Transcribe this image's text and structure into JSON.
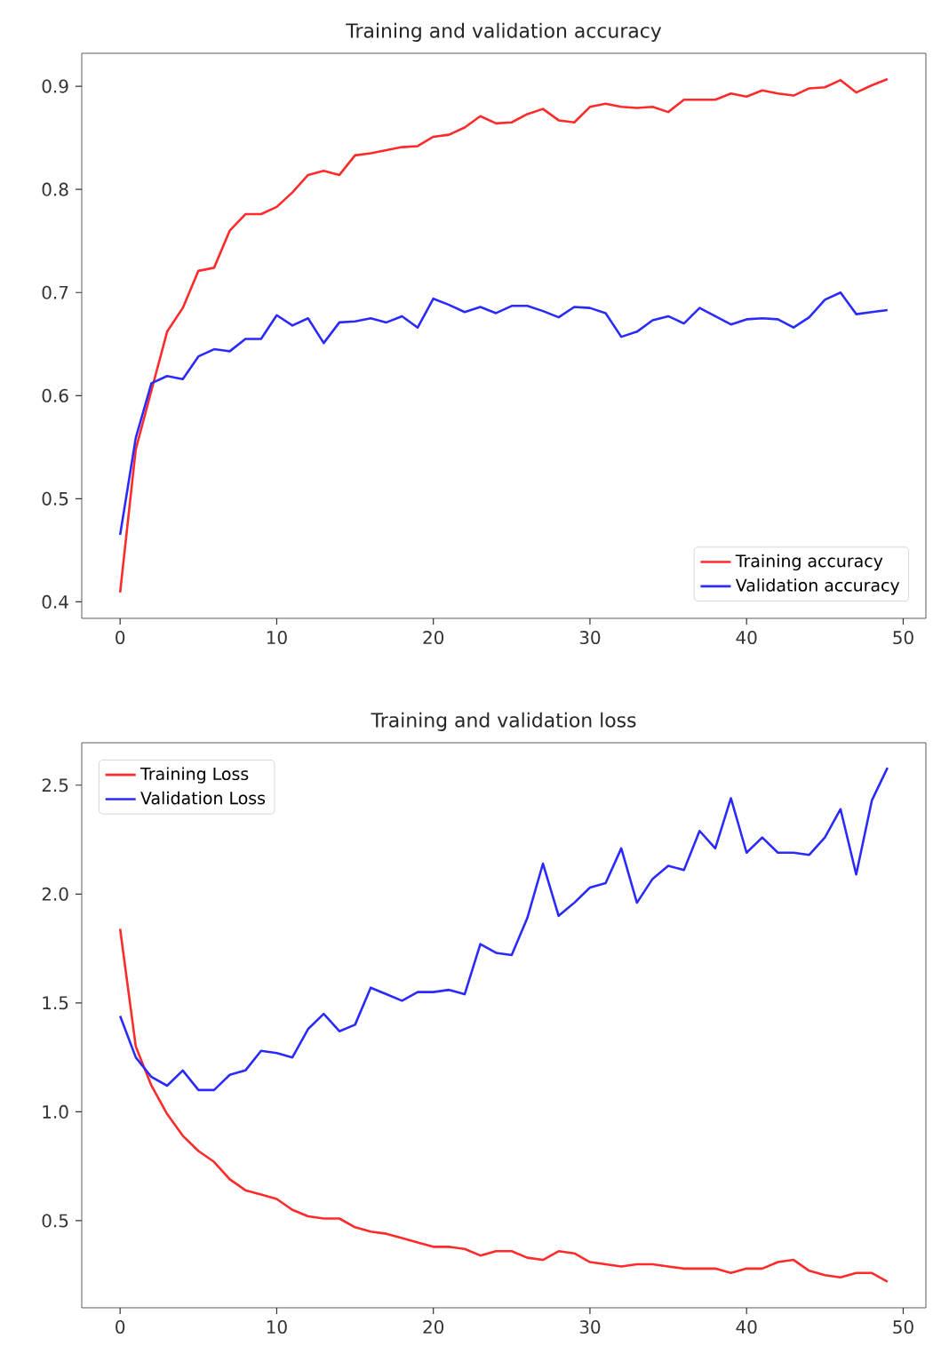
{
  "chart_data": [
    {
      "type": "line",
      "title": "Training and validation accuracy",
      "x": [
        0,
        1,
        2,
        3,
        4,
        5,
        6,
        7,
        8,
        9,
        10,
        11,
        12,
        13,
        14,
        15,
        16,
        17,
        18,
        19,
        20,
        21,
        22,
        23,
        24,
        25,
        26,
        27,
        28,
        29,
        30,
        31,
        32,
        33,
        34,
        35,
        36,
        37,
        38,
        39,
        40,
        41,
        42,
        43,
        44,
        45,
        46,
        47,
        48,
        49
      ],
      "series": [
        {
          "name": "Training accuracy",
          "color": "#ff2a2a",
          "values": [
            0.409,
            0.548,
            0.605,
            0.662,
            0.685,
            0.721,
            0.724,
            0.76,
            0.776,
            0.776,
            0.783,
            0.797,
            0.814,
            0.818,
            0.814,
            0.833,
            0.835,
            0.838,
            0.841,
            0.842,
            0.851,
            0.853,
            0.86,
            0.871,
            0.864,
            0.865,
            0.873,
            0.878,
            0.867,
            0.865,
            0.88,
            0.883,
            0.88,
            0.879,
            0.88,
            0.875,
            0.887,
            0.887,
            0.887,
            0.893,
            0.89,
            0.896,
            0.893,
            0.891,
            0.898,
            0.899,
            0.906,
            0.894,
            0.901,
            0.907
          ]
        },
        {
          "name": "Validation accuracy",
          "color": "#2a2aff",
          "values": [
            0.465,
            0.559,
            0.612,
            0.619,
            0.616,
            0.638,
            0.645,
            0.643,
            0.655,
            0.655,
            0.678,
            0.668,
            0.675,
            0.651,
            0.671,
            0.672,
            0.675,
            0.671,
            0.677,
            0.666,
            0.694,
            0.688,
            0.681,
            0.686,
            0.68,
            0.687,
            0.687,
            0.682,
            0.676,
            0.686,
            0.685,
            0.68,
            0.657,
            0.662,
            0.673,
            0.677,
            0.67,
            0.685,
            0.677,
            0.669,
            0.674,
            0.675,
            0.674,
            0.666,
            0.676,
            0.693,
            0.7,
            0.679,
            0.681,
            0.683
          ]
        }
      ],
      "xlim": [
        -2.45,
        51.45
      ],
      "xticks": [
        0,
        10,
        20,
        30,
        40,
        50
      ],
      "ylim": [
        0.384,
        0.932
      ],
      "yticks": [
        0.4,
        0.5,
        0.6,
        0.7,
        0.8,
        0.9
      ],
      "legend": "bottom right",
      "grid": false,
      "line_style": "solid"
    },
    {
      "type": "line",
      "title": "Training and validation loss",
      "x": [
        0,
        1,
        2,
        3,
        4,
        5,
        6,
        7,
        8,
        9,
        10,
        11,
        12,
        13,
        14,
        15,
        16,
        17,
        18,
        19,
        20,
        21,
        22,
        23,
        24,
        25,
        26,
        27,
        28,
        29,
        30,
        31,
        32,
        33,
        34,
        35,
        36,
        37,
        38,
        39,
        40,
        41,
        42,
        43,
        44,
        45,
        46,
        47,
        48,
        49
      ],
      "series": [
        {
          "name": "Training Loss",
          "color": "#ff2a2a",
          "values": [
            1.84,
            1.3,
            1.12,
            0.99,
            0.89,
            0.82,
            0.77,
            0.69,
            0.64,
            0.62,
            0.6,
            0.55,
            0.52,
            0.51,
            0.51,
            0.47,
            0.45,
            0.44,
            0.42,
            0.4,
            0.38,
            0.38,
            0.37,
            0.34,
            0.36,
            0.36,
            0.33,
            0.32,
            0.36,
            0.35,
            0.31,
            0.3,
            0.29,
            0.3,
            0.3,
            0.29,
            0.28,
            0.28,
            0.28,
            0.26,
            0.28,
            0.28,
            0.31,
            0.32,
            0.27,
            0.25,
            0.24,
            0.26,
            0.26,
            0.22
          ]
        },
        {
          "name": "Validation Loss",
          "color": "#2a2aff",
          "values": [
            1.44,
            1.25,
            1.16,
            1.12,
            1.19,
            1.1,
            1.1,
            1.17,
            1.19,
            1.28,
            1.27,
            1.25,
            1.38,
            1.45,
            1.37,
            1.4,
            1.57,
            1.54,
            1.51,
            1.55,
            1.55,
            1.56,
            1.54,
            1.77,
            1.73,
            1.72,
            1.89,
            2.14,
            1.9,
            1.96,
            2.03,
            2.05,
            2.21,
            1.96,
            2.07,
            2.13,
            2.11,
            2.29,
            2.21,
            2.44,
            2.19,
            2.26,
            2.19,
            2.19,
            2.18,
            2.26,
            2.39,
            2.09,
            2.43,
            2.58
          ]
        }
      ],
      "xlim": [
        -2.45,
        51.45
      ],
      "xticks": [
        0,
        10,
        20,
        30,
        40,
        50
      ],
      "ylim": [
        0.1,
        2.695
      ],
      "yticks": [
        0.5,
        {
          "value": 1.0,
          "label": "1.0"
        },
        1.5,
        {
          "value": 2.0,
          "label": "2.0"
        },
        2.5
      ],
      "legend": "top left",
      "grid": false,
      "line_style": "solid"
    }
  ]
}
